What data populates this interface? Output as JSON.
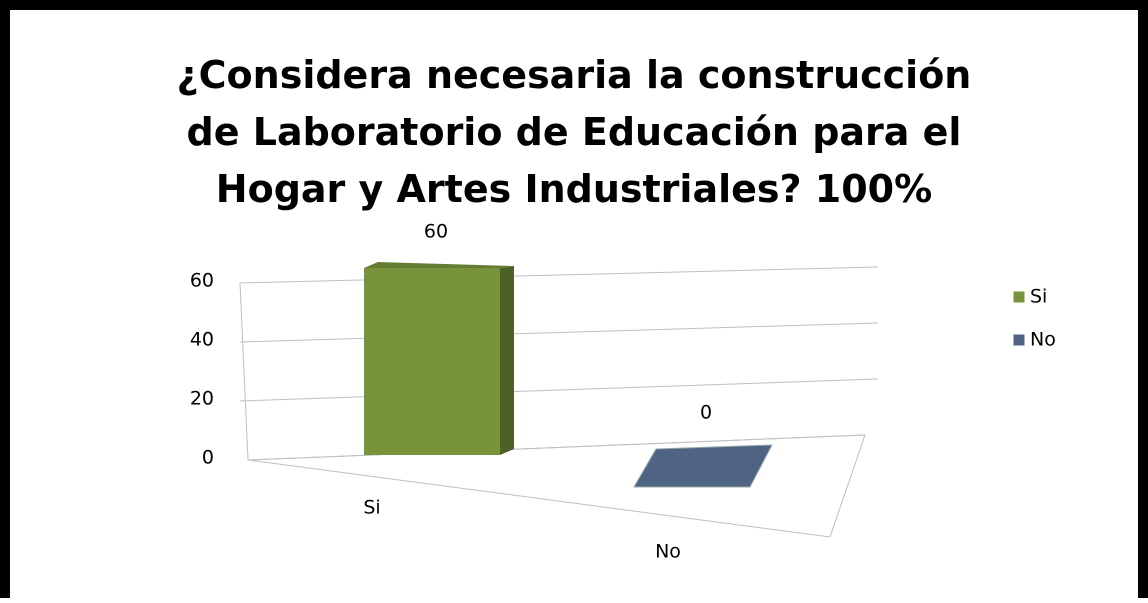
{
  "chart_data": {
    "type": "bar",
    "title": "¿Considera necesaria la construcción de Laboratorio de Educación para el Hogar y Artes Industriales?  100%",
    "categories": [
      "Si",
      "No"
    ],
    "series": [
      {
        "name": "Si",
        "color": "#77933c",
        "values": [
          60,
          null
        ]
      },
      {
        "name": "No",
        "color": "#4f6382",
        "values": [
          null,
          0
        ]
      }
    ],
    "ylim": [
      0,
      60
    ],
    "yticks": [
      0,
      20,
      40,
      60
    ],
    "grid": true,
    "legend": "right"
  }
}
